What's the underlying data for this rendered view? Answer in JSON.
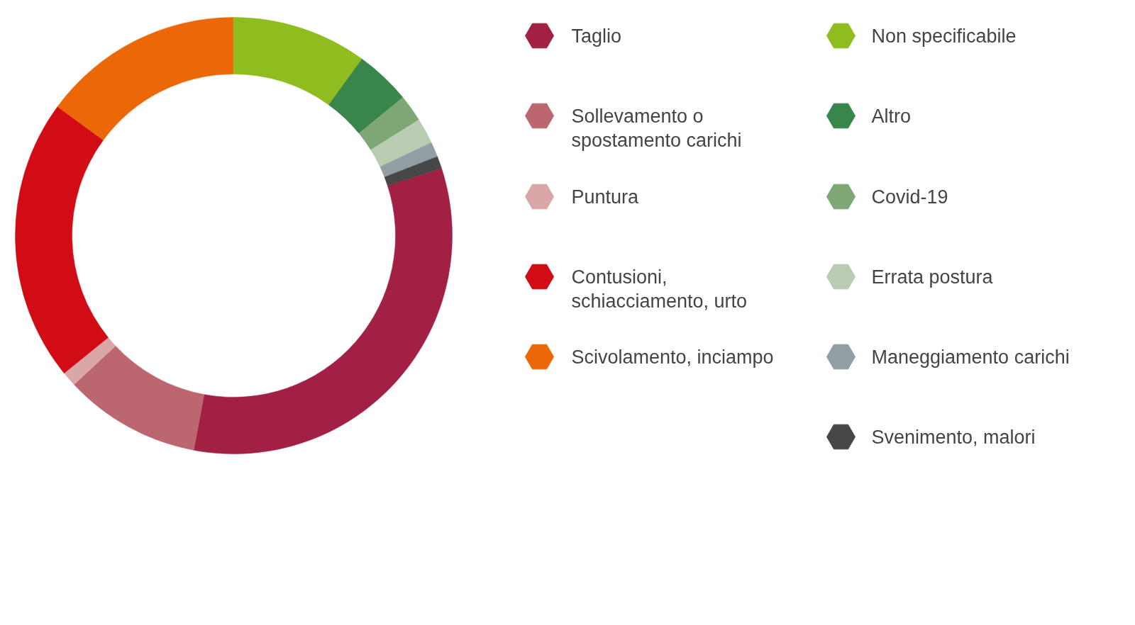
{
  "chart_data": {
    "type": "donut",
    "legend": "right",
    "categories": [
      "Taglio",
      "Sollevamento o spostamento carichi",
      "Puntura",
      "Contusioni, schiacciamento, urto",
      "Scivolamento, inciampo",
      "Non specificabile",
      "Altro",
      "Covid-19",
      "Errata postura",
      "Maneggiamento carichi",
      "Svenimento, malori"
    ],
    "values": [
      32.9,
      10.1,
      1.1,
      20.9,
      14.9,
      10.0,
      4.1,
      2.0,
      1.9,
      1.1,
      0.9
    ],
    "colors": [
      "#a32045",
      "#bc6670",
      "#d9a7a8",
      "#d20c14",
      "#ec6707",
      "#8fbd20",
      "#38864b",
      "#7fa776",
      "#b9cbb0",
      "#929ea3",
      "#474747"
    ]
  }
}
